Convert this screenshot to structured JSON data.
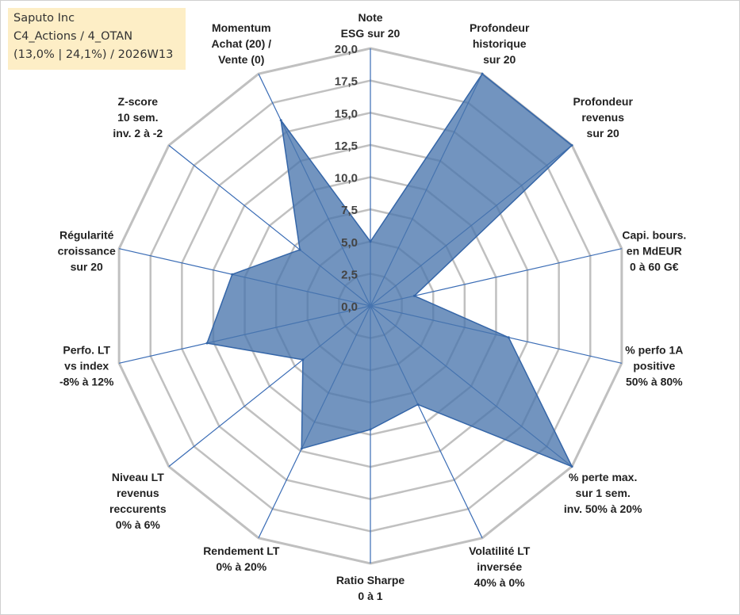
{
  "legend": {
    "line1": "Saputo Inc",
    "line2": "C4_Actions / 4_OTAN",
    "line3": "(13,0% | 24,1%) / 2026W13"
  },
  "colors": {
    "fill": "#4a76ad",
    "stroke": "#3566a8",
    "grid": "#c0c0c0",
    "spoke": "#3a6cb5"
  },
  "chart_data": {
    "type": "radar",
    "title": "",
    "rmin": 0,
    "rmax": 20,
    "tick_step": 2.5,
    "tick_labels": [
      "0,0",
      "2,5",
      "5,0",
      "7,5",
      "10,0",
      "12,5",
      "15,0",
      "17,5",
      "20,0"
    ],
    "axes": [
      {
        "label": [
          "Note",
          "ESG sur 20"
        ],
        "value": 5.0
      },
      {
        "label": [
          "Profondeur",
          "historique",
          "sur 20"
        ],
        "value": 20.0
      },
      {
        "label": [
          "Profondeur",
          "revenus",
          "sur 20"
        ],
        "value": 20.0
      },
      {
        "label": [
          "Capi. bours.",
          "en MdEUR",
          "0 à 60 G€"
        ],
        "value": 3.5
      },
      {
        "label": [
          "% perfo 1A",
          "positive",
          "50% à 80%"
        ],
        "value": 11.0
      },
      {
        "label": [
          "% perte max.",
          "sur 1 sem.",
          "inv. 50% à 20%"
        ],
        "value": 20.0
      },
      {
        "label": [
          "Volatilité LT",
          "inversée",
          "40% à 0%"
        ],
        "value": 8.5
      },
      {
        "label": [
          "Ratio Sharpe",
          "0 à 1"
        ],
        "value": 9.6
      },
      {
        "label": [
          "Rendement LT",
          "0% à 20%"
        ],
        "value": 12.3
      },
      {
        "label": [
          "Niveau LT",
          "revenus",
          "reccurents",
          "0% à 6%"
        ],
        "value": 6.7
      },
      {
        "label": [
          "Perfo. LT",
          "vs index",
          "-8% à 12%"
        ],
        "value": 13.0
      },
      {
        "label": [
          "Régularité",
          "croissance",
          "sur 20"
        ],
        "value": 11.0
      },
      {
        "label": [
          "Z-score",
          "10 sem.",
          "inv. 2 à -2"
        ],
        "value": 7.0
      },
      {
        "label": [
          "Momentum",
          "Achat (20) /",
          "Vente (0)"
        ],
        "value": 16.0
      }
    ]
  }
}
